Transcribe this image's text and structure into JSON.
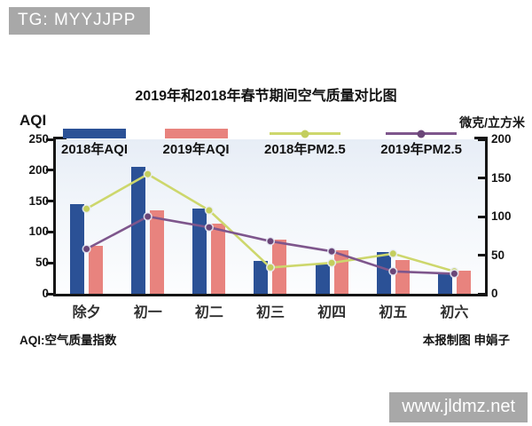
{
  "badges": {
    "tg": "TG: MYYJJPP",
    "watermark": "www.jldmz.net"
  },
  "footnotes": {
    "left": "AQI:空气质量指数",
    "right": "本报制图 申娟子"
  },
  "chart_data": {
    "type": "bar",
    "title": "2019年和2018年春节期间空气质量对比图",
    "categories": [
      "除夕",
      "初一",
      "初二",
      "初三",
      "初四",
      "初五",
      "初六"
    ],
    "left_axis": {
      "label": "AQI",
      "max": 250,
      "ticks": [
        0,
        50,
        100,
        150,
        200,
        250
      ]
    },
    "right_axis": {
      "label": "微克/立方米",
      "max": 200,
      "ticks": [
        0,
        50,
        100,
        150,
        200
      ]
    },
    "legend_position": "top",
    "grid": false,
    "series": [
      {
        "name": "2018年AQI",
        "kind": "bar",
        "axis": "left",
        "color": "#2b5196",
        "values": [
          145,
          205,
          138,
          53,
          48,
          68,
          33
        ]
      },
      {
        "name": "2019年AQI",
        "kind": "bar",
        "axis": "left",
        "color": "#e8837e",
        "values": [
          78,
          135,
          113,
          87,
          70,
          55,
          38
        ]
      },
      {
        "name": "2018年PM2.5",
        "kind": "line",
        "axis": "right",
        "color": "#cdd76c",
        "marker_color": "#c3ce5d",
        "values": [
          110,
          155,
          108,
          34,
          40,
          52,
          29
        ]
      },
      {
        "name": "2019年PM2.5",
        "kind": "line",
        "axis": "right",
        "color": "#7e568c",
        "marker_color": "#6a4678",
        "values": [
          58,
          100,
          86,
          68,
          55,
          29,
          26
        ]
      }
    ]
  }
}
